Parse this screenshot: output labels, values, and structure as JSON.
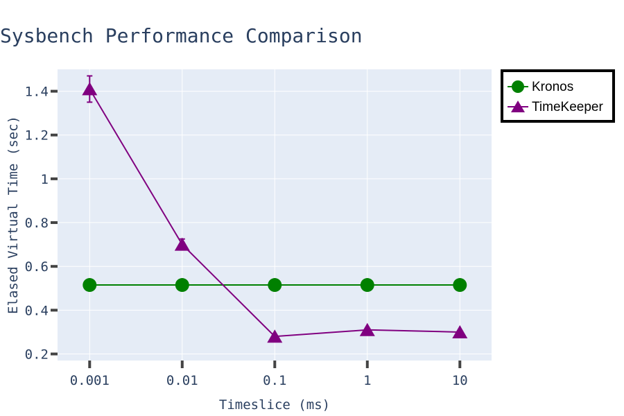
{
  "chart_data": {
    "type": "line",
    "title": "Sysbench Performance Comparison",
    "xlabel": "Timeslice (ms)",
    "ylabel": "Elased Virtual Time (sec)",
    "x_scale": "log",
    "x": [
      0.001,
      0.01,
      0.1,
      1,
      10
    ],
    "x_tick_labels": [
      "0.001",
      "0.01",
      "0.1",
      "1",
      "10"
    ],
    "ylim": [
      0.17,
      1.5
    ],
    "y_ticks": [
      0.2,
      0.4,
      0.6,
      0.8,
      1,
      1.2,
      1.4
    ],
    "y_tick_labels": [
      "0.2",
      "0.4",
      "0.6",
      "0.8",
      "1",
      "1.2",
      "1.4"
    ],
    "grid": true,
    "legend_position": "top-right",
    "series": [
      {
        "name": "Kronos",
        "color": "#008000",
        "marker": "circle",
        "values": [
          0.515,
          0.515,
          0.515,
          0.515,
          0.515
        ]
      },
      {
        "name": "TimeKeeper",
        "color": "#800080",
        "marker": "triangle-up",
        "values": [
          1.41,
          0.7,
          0.28,
          0.31,
          0.3
        ],
        "error": [
          0.06,
          0.025,
          0,
          0,
          0
        ]
      }
    ]
  },
  "colors": {
    "plot_background": "#e5ecf6",
    "gridline": "#ffffff",
    "text": "#2a3f5f",
    "tick_mark": "#444444"
  }
}
